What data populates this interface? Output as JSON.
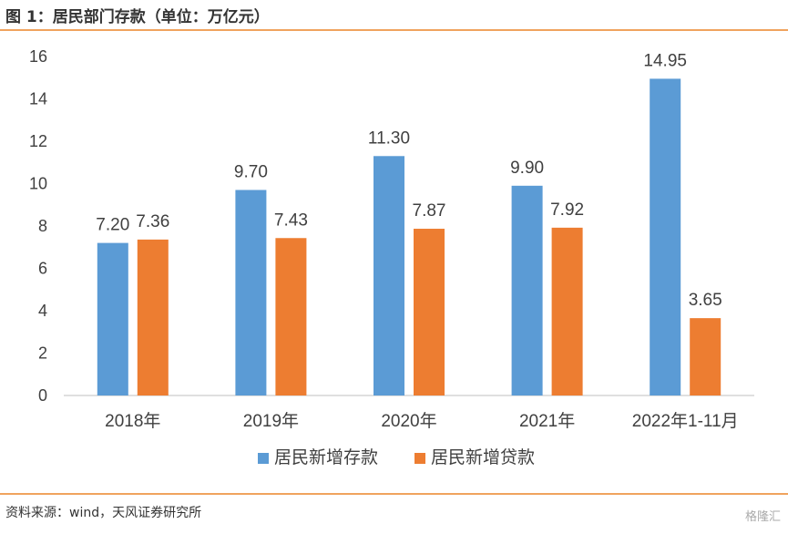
{
  "header": {
    "title": "图 1：居民部门存款（单位：万亿元）"
  },
  "footer": {
    "source": "资料来源：wind，天风证券研究所",
    "watermark": "格隆汇"
  },
  "chart_data": {
    "type": "bar",
    "categories": [
      "2018年",
      "2019年",
      "2020年",
      "2021年",
      "2022年1-11月"
    ],
    "series": [
      {
        "name": "居民新增存款",
        "values": [
          7.2,
          9.7,
          11.3,
          9.9,
          14.95
        ],
        "color": "#5b9bd5"
      },
      {
        "name": "居民新增贷款",
        "values": [
          7.36,
          7.43,
          7.87,
          7.92,
          3.65
        ],
        "color": "#ed7d31"
      }
    ],
    "yticks": [
      0,
      2,
      4,
      6,
      8,
      10,
      12,
      14,
      16
    ],
    "ylim": [
      0,
      16
    ],
    "grid": false,
    "legend": "bottom",
    "data_labels": [
      "7.20",
      "9.70",
      "11.30",
      "9.90",
      "14.95",
      "7.36",
      "7.43",
      "7.87",
      "7.92",
      "3.65"
    ]
  }
}
